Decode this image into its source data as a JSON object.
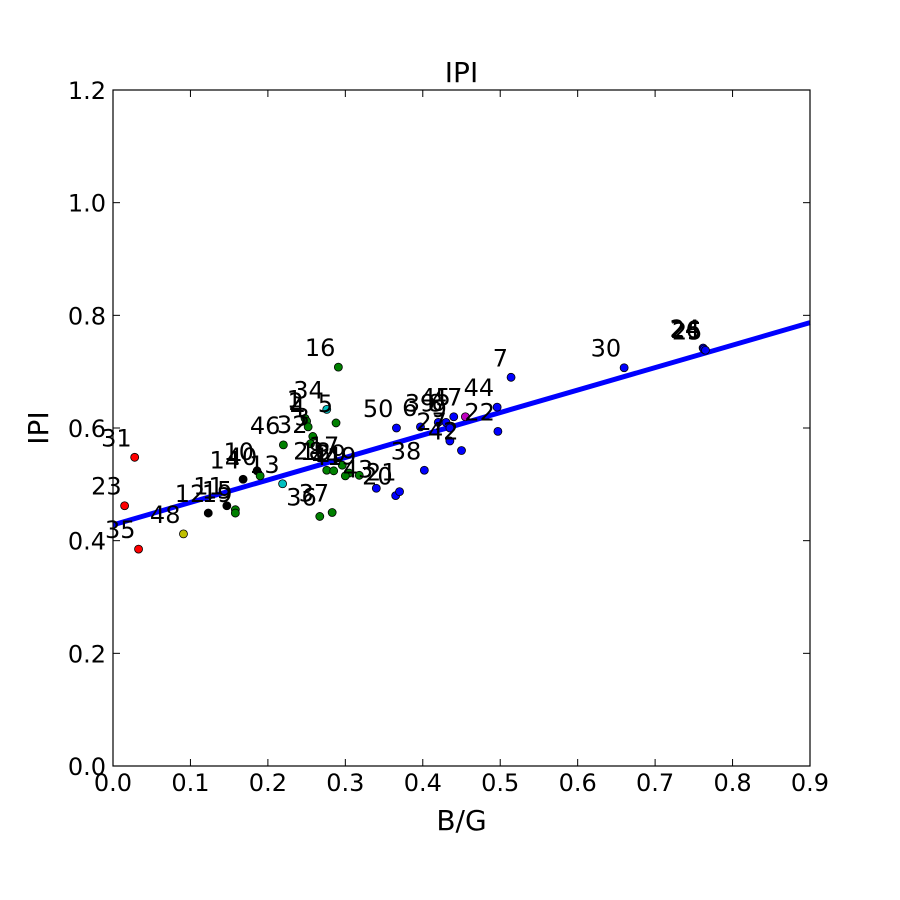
{
  "chart_data": {
    "type": "scatter",
    "title": "IPI",
    "xlabel": "B/G",
    "ylabel": "IPI",
    "xlim": [
      0.0,
      0.9
    ],
    "ylim": [
      0.0,
      1.2
    ],
    "xticks": [
      "0.0",
      "0.1",
      "0.2",
      "0.3",
      "0.4",
      "0.5",
      "0.6",
      "0.7",
      "0.8",
      "0.9"
    ],
    "yticks": [
      "0.0",
      "0.2",
      "0.4",
      "0.6",
      "0.8",
      "1.0",
      "1.2"
    ],
    "grid": false,
    "fit_line": {
      "color": "#0000ff",
      "x": [
        0.0,
        0.9
      ],
      "y": [
        0.428,
        0.787
      ]
    },
    "points": [
      {
        "label": "31",
        "x": 0.028,
        "y": 0.548,
        "color": "#ff0000"
      },
      {
        "label": "23",
        "x": 0.015,
        "y": 0.462,
        "color": "#ff0000"
      },
      {
        "label": "35",
        "x": 0.033,
        "y": 0.385,
        "color": "#ff0000"
      },
      {
        "label": "48",
        "x": 0.091,
        "y": 0.412,
        "color": "#bfbf00"
      },
      {
        "label": "12",
        "x": 0.123,
        "y": 0.449,
        "color": "#000000"
      },
      {
        "label": "11",
        "x": 0.147,
        "y": 0.462,
        "color": "#000000"
      },
      {
        "label": "15",
        "x": 0.158,
        "y": 0.455,
        "color": "#008000"
      },
      {
        "label": "19",
        "x": 0.158,
        "y": 0.449,
        "color": "#008000"
      },
      {
        "label": "14",
        "x": 0.168,
        "y": 0.509,
        "color": "#000000"
      },
      {
        "label": "10",
        "x": 0.186,
        "y": 0.524,
        "color": "#000000"
      },
      {
        "label": "40",
        "x": 0.19,
        "y": 0.515,
        "color": "#008000"
      },
      {
        "label": "13",
        "x": 0.219,
        "y": 0.501,
        "color": "#00bfbf"
      },
      {
        "label": "46",
        "x": 0.22,
        "y": 0.57,
        "color": "#008000"
      },
      {
        "label": "34",
        "x": 0.276,
        "y": 0.633,
        "color": "#00bfbf"
      },
      {
        "label": "1",
        "x": 0.248,
        "y": 0.617,
        "color": "#008000"
      },
      {
        "label": "2",
        "x": 0.25,
        "y": 0.612,
        "color": "#008000"
      },
      {
        "label": "4",
        "x": 0.252,
        "y": 0.602,
        "color": "#008000"
      },
      {
        "label": "5",
        "x": 0.288,
        "y": 0.609,
        "color": "#008000"
      },
      {
        "label": "3",
        "x": 0.258,
        "y": 0.585,
        "color": "#008000"
      },
      {
        "label": "16",
        "x": 0.291,
        "y": 0.708,
        "color": "#008000"
      },
      {
        "label": "32",
        "x": 0.255,
        "y": 0.572,
        "color": "#008000"
      },
      {
        "label": "28",
        "x": 0.276,
        "y": 0.525,
        "color": "#008000"
      },
      {
        "label": "18",
        "x": 0.285,
        "y": 0.524,
        "color": "#008000"
      },
      {
        "label": "17",
        "x": 0.296,
        "y": 0.534,
        "color": "#008000"
      },
      {
        "label": "29",
        "x": 0.305,
        "y": 0.52,
        "color": "#008000"
      },
      {
        "label": "36",
        "x": 0.267,
        "y": 0.443,
        "color": "#008000"
      },
      {
        "label": "37",
        "x": 0.283,
        "y": 0.45,
        "color": "#008000"
      },
      {
        "label": "41",
        "x": 0.3,
        "y": 0.515,
        "color": "#008000"
      },
      {
        "label": "49",
        "x": 0.318,
        "y": 0.516,
        "color": "#008000"
      },
      {
        "label": "43",
        "x": 0.34,
        "y": 0.493,
        "color": "#0000ff"
      },
      {
        "label": "20",
        "x": 0.365,
        "y": 0.48,
        "color": "#0000ff"
      },
      {
        "label": "21",
        "x": 0.37,
        "y": 0.487,
        "color": "#0000ff"
      },
      {
        "label": "50",
        "x": 0.366,
        "y": 0.6,
        "color": "#0000ff"
      },
      {
        "label": "6",
        "x": 0.397,
        "y": 0.602,
        "color": "#0000ff"
      },
      {
        "label": "38",
        "x": 0.402,
        "y": 0.525,
        "color": "#0000ff"
      },
      {
        "label": "39",
        "x": 0.42,
        "y": 0.61,
        "color": "#0000ff"
      },
      {
        "label": "45",
        "x": 0.44,
        "y": 0.62,
        "color": "#0000ff"
      },
      {
        "label": "8",
        "x": 0.43,
        "y": 0.61,
        "color": "#0000ff"
      },
      {
        "label": "9",
        "x": 0.435,
        "y": 0.6,
        "color": "#0000ff"
      },
      {
        "label": "27",
        "x": 0.435,
        "y": 0.577,
        "color": "#0000ff"
      },
      {
        "label": "42",
        "x": 0.45,
        "y": 0.56,
        "color": "#0000ff"
      },
      {
        "label": "47",
        "x": 0.455,
        "y": 0.62,
        "color": "#bf00bf"
      },
      {
        "label": "44",
        "x": 0.496,
        "y": 0.637,
        "color": "#0000ff"
      },
      {
        "label": "22",
        "x": 0.497,
        "y": 0.594,
        "color": "#0000ff"
      },
      {
        "label": "7",
        "x": 0.514,
        "y": 0.69,
        "color": "#0000ff"
      },
      {
        "label": "30",
        "x": 0.66,
        "y": 0.707,
        "color": "#0000ff"
      },
      {
        "label": "24",
        "x": 0.762,
        "y": 0.742,
        "color": "#0000ff"
      },
      {
        "label": "26",
        "x": 0.763,
        "y": 0.74,
        "color": "#0000ff"
      },
      {
        "label": "25",
        "x": 0.765,
        "y": 0.738,
        "color": "#0000ff"
      }
    ],
    "label_positions": [
      "31",
      "23",
      "35"
    ]
  }
}
